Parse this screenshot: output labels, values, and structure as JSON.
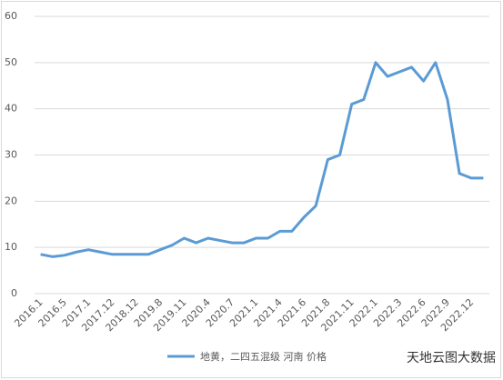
{
  "chart_data": {
    "type": "line",
    "categories": [
      "2016.1",
      null,
      "2016.5",
      null,
      "2017.1",
      null,
      "2017.12",
      null,
      "2018.12",
      null,
      "2019.8",
      null,
      "2019.11",
      null,
      "2020.4",
      null,
      "2020.7",
      null,
      "2021.1",
      null,
      "2021.4",
      null,
      "2021.6",
      null,
      "2021.8",
      null,
      "2021.11",
      null,
      "2022.1",
      null,
      "2022.3",
      null,
      "2022.6",
      null,
      "2022.9",
      null,
      "2022.12",
      null
    ],
    "series": [
      {
        "name": "地黄，二四五混级 河南 价格",
        "color": "#5b9bd5",
        "values": [
          8.5,
          8,
          8.3,
          9,
          9.5,
          9,
          8.5,
          8.5,
          8.5,
          8.5,
          9.5,
          10.5,
          12,
          11,
          12,
          11.5,
          11,
          11,
          12,
          12,
          13.5,
          13.5,
          16.5,
          19,
          29,
          30,
          41,
          42,
          50,
          47,
          48,
          49,
          46,
          50,
          42,
          26,
          25,
          25
        ]
      }
    ],
    "ylim": [
      0,
      60
    ],
    "yticks": [
      0,
      10,
      20,
      30,
      40,
      50,
      60
    ],
    "grid": true,
    "legend": "bottom",
    "watermark": "天地云图大数据"
  }
}
